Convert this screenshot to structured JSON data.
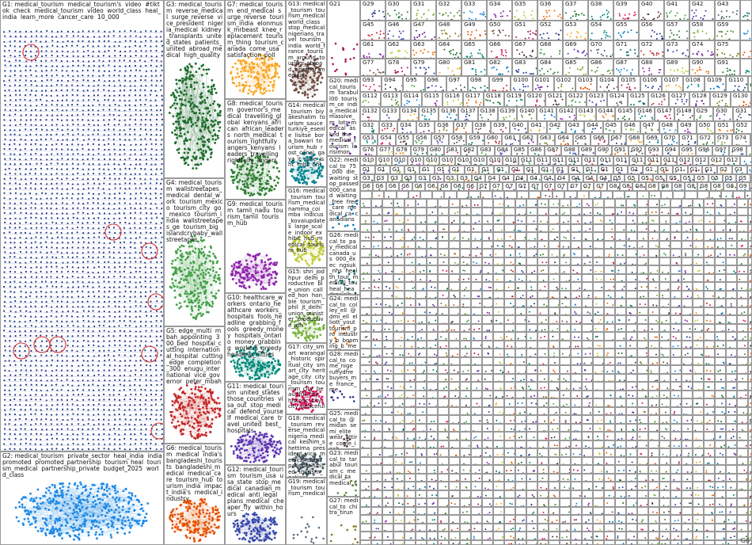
{
  "groups": [
    {
      "id": "G1",
      "terms": "medical_tourism  medical_tourism's  video  #tiktok  check  medical_tourism  video  world_class  heal_india  learn_more  cancer_care  10_000",
      "color": "#1f3a8a",
      "density": "dense"
    },
    {
      "id": "G2",
      "terms": "medical_tourism  private_sector  heal_india  india  promoted  promoted_partnership  tourism_heal  tourism_medical  partnership_private  budget_2025  world_class",
      "color": "#1e88e5",
      "density": "cloud"
    },
    {
      "id": "G3",
      "terms": "medical_tourism  reverse_medical  surge_reverse  vice_president  nigeria_medical  kidney_transplants  united_states  patients_united  abroad_medical  high_quality",
      "color": "#1b6b2a",
      "density": "cloud"
    },
    {
      "id": "G4",
      "terms": "medical_tourism  wallstreetapes_medical  dental_work  tourism_mexico  tourism_city  go_mexico  tourism_india  wallstreetapes_ge  tourism_big  islandcrybaby_wallstreetapes",
      "color": "#43a047",
      "density": "cloud"
    },
    {
      "id": "G5",
      "terms": "edge_multi  mbah_appointing  300_bed  hospital_cutting  international_hospital  cutting_edge  completion_300  enugu_international  vice_governor  peter_mbah",
      "color": "#c62828",
      "density": "cloud"
    },
    {
      "id": "G6",
      "terms": "medical_tourism  medical  india's  bangladeshi_tourists  bangladeshi_medical  medical_care  tourism_hub  tourism_india  impact_india's  medical_industry",
      "color": "#e65100",
      "density": "cloud"
    },
    {
      "id": "G7",
      "terms": "medical_tourism  end_medical  surge_reverse  tourism_india  elonmusk_mrbeast  knee_replacement  tourism_thing  tourism_canada  come_usa  satisfaction_poll",
      "color": "#f9a825",
      "density": "cloud"
    },
    {
      "id": "G8",
      "terms": "medical_tourism  governor's_medical  travelling_global  kenyans_african  african_leaders  north_medical  tourism_rightfully  angers_kenyans  leaders_travelling  rightfully_angers",
      "color": "#2e7d32",
      "density": "cloud"
    },
    {
      "id": "G9",
      "terms": "medical_tourism  tamil_nadu  tourism_tamil  tourism_hub",
      "color": "#8e24aa",
      "density": "cloud"
    },
    {
      "id": "G10",
      "terms": "healthcare_workers  ontario_healthcare  workers_hospitals  fools_headline  grabbing_fools  greedy_money  hospitals_ontario  money_grabbing  workers_greedy  headline_nitties",
      "color": "#00897b",
      "density": "cloud"
    },
    {
      "id": "G11",
      "terms": "medical_tourism  united_states  those_countries  visa_out  stop_medical  defend_yourself  medical_care  travel_united  best_hospitals",
      "color": "#5e35b1",
      "density": "cloud"
    },
    {
      "id": "G12",
      "terms": "medical_tourism  tourism_usa  usa_state  stop_medical  canadian_medical  anti_legal  plans_medical  cheaper_fly  within_hours",
      "color": "#3949ab",
      "density": "cloud"
    },
    {
      "id": "G13",
      "terms": "medical_tourism  tourism_medical  world_class  stop_medical  nigerians_travel  tourism_india  world_france  tourism_around  tourism_abroad  another_medical",
      "color": "#6d4c41",
      "density": "cloud"
    },
    {
      "id": "G14",
      "terms": "medical_tourism  biyakeshalim  tourism_sauce  turkiye_esenle  lisitse  bora_bawari  tourism_hub  rost_cenal  gaya_it  inhe_isht  mltli_nhl",
      "color": "#00838f",
      "density": "cloud"
    },
    {
      "id": "G15",
      "terms": "shri_jodhpur  delhi_productive  ble_union  called_hon  hon_ble  tourism_phil  jt_delhi  union_minister  productive_jdh",
      "color": "#7cb342",
      "density": "cloud"
    },
    {
      "id": "G16",
      "terms": "medical_tourism  tourism_medical  namma_coimba  indicus_kovaiupdates  large_scale  indoor_exhibit  hub_medical  tourism_hub",
      "color": "#c0ca33",
      "density": "cloud"
    },
    {
      "id": "G17",
      "terms": "city_smart  warangal_historic  spiritual_city  smart_city  heritage_city  city_tourism  tourism_city  beautiful_city  historic_city  city_peaceful",
      "color": "#d81b60",
      "density": "cloud"
    },
    {
      "id": "G18",
      "terms": "medical_tourism  reverse_medical  nigeria_medical  keshim_shettima  president_vice  medical_care  patients_united  tourism_patient",
      "color": "#455a64",
      "density": "cloud"
    },
    {
      "id": "G19",
      "terms": "medical_tourism  tourism_medical",
      "color": "#546e7a",
      "density": "few"
    },
    {
      "id": "G20",
      "terms": "medical_tourism  tarabull00  tourism_ce  india_medical  massive_m  lots_medical  asked_the  medical_tourism  lorisimon",
      "color": "#6a1b9a",
      "density": "few"
    },
    {
      "id": "G21",
      "terms": "",
      "color": "#ad1457",
      "density": "few"
    },
    {
      "id": "G22",
      "terms": "medical_to  75_000  die_waiting  stop_passed  000_canad  waiting_free  free_care  medical_ca  canadians",
      "color": "#0277bd",
      "density": "few"
    },
    {
      "id": "G23",
      "terms": "medical_to  tarabul  tourism_c  medical_ta  medical_s",
      "color": "#558b2f",
      "density": "few"
    },
    {
      "id": "G24",
      "terms": "medical_to  colley_ell  @dmi_ell  elliott_yout  tourism_pro  industry_b  booming_b  medical_tou  china's_me",
      "color": "#ef6c00",
      "density": "few"
    },
    {
      "id": "G25",
      "terms": "medical_to  @midan  semi_elite  wear_attire  come_inch",
      "color": "#4e342e",
      "density": "few"
    },
    {
      "id": "G26",
      "terms": "medical_to  pay_medical  canada_us  000_exec  ngsuk_nhs  health_tour  medical_tou  heal_hea  drqwelb_t",
      "color": "#00695c",
      "density": "few"
    },
    {
      "id": "G27",
      "terms": "medical_to  chitra_tirun",
      "color": "#827717",
      "density": "few"
    },
    {
      "id": "G28",
      "terms": "medical_to  come_nige  ruffydfre  buyers_me  france_me",
      "color": "#283593",
      "density": "few"
    }
  ],
  "small_groups": [
    "G29",
    "G30",
    "G31",
    "G32",
    "G33",
    "G34",
    "G35",
    "G36",
    "G37",
    "G38",
    "G39",
    "G40",
    "G41",
    "G42",
    "G43",
    "G44",
    "G45",
    "G46",
    "G47",
    "G48",
    "G49",
    "G50",
    "G51",
    "G52",
    "G53",
    "G54",
    "G55",
    "G56",
    "G57",
    "G58",
    "G59",
    "G60",
    "G61",
    "G62",
    "G63",
    "G64",
    "G65",
    "G66",
    "G67",
    "G68",
    "G69",
    "G70",
    "G71",
    "G72",
    "G73",
    "G74",
    "G75",
    "G76",
    "G77",
    "G78",
    "G79",
    "G80",
    "G81",
    "G82",
    "G83",
    "G84",
    "G85",
    "G86",
    "G87",
    "G88",
    "G89",
    "G90",
    "G91",
    "G92",
    "G93",
    "G94",
    "G95",
    "G96",
    "G97",
    "G98",
    "G99",
    "G100",
    "G101",
    "G102",
    "G103",
    "G104",
    "G105",
    "G106",
    "G107",
    "G108",
    "G109",
    "G110",
    "G111",
    "G112",
    "G113",
    "G114",
    "G115",
    "G116",
    "G117",
    "G118",
    "G119",
    "G120",
    "G121",
    "G122",
    "G123",
    "G124",
    "G125",
    "G126",
    "G127",
    "G128",
    "G129",
    "G130",
    "G131",
    "G132",
    "G133",
    "G134",
    "G135",
    "G136",
    "G137",
    "G138",
    "G139",
    "G140",
    "G141",
    "G142",
    "G143",
    "G144",
    "G145",
    "G146",
    "G147",
    "G148"
  ],
  "small_terms": [
    "medical",
    "tourism",
    "medi",
    "tour",
    "medic",
    "g",
    "me",
    "he",
    "go",
    "fu",
    "en",
    "co"
  ],
  "corner_label": "G8",
  "palette": [
    "#1f3a8a",
    "#1e88e5",
    "#1b6b2a",
    "#43a047",
    "#c62828",
    "#e65100",
    "#f9a825",
    "#2e7d32",
    "#8e24aa",
    "#00897b",
    "#5e35b1",
    "#3949ab",
    "#6d4c41",
    "#00838f",
    "#7cb342",
    "#c0ca33",
    "#d81b60",
    "#455a64",
    "#6a1b9a",
    "#ad1457",
    "#0277bd",
    "#558b2f",
    "#ef6c00",
    "#4e342e",
    "#00695c",
    "#827717",
    "#283593"
  ]
}
